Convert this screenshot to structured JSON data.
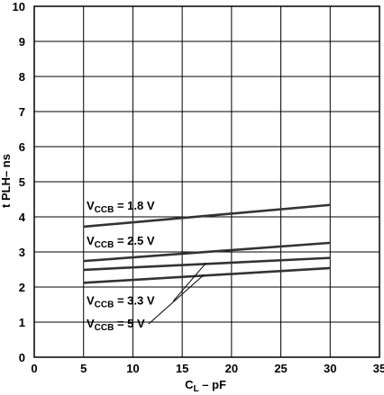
{
  "chart_data": {
    "type": "line",
    "title": "",
    "xlabel": {
      "main": "C",
      "sub": "L",
      "rest": " – pF"
    },
    "ylabel": "t PLH– ns",
    "xlim": [
      0,
      35
    ],
    "ylim": [
      0,
      10
    ],
    "x_ticks": [
      0,
      5,
      10,
      15,
      20,
      25,
      30,
      35
    ],
    "y_ticks": [
      0,
      1,
      2,
      3,
      4,
      5,
      6,
      7,
      8,
      9,
      10
    ],
    "grid": true,
    "series": [
      {
        "name": {
          "main": "V",
          "sub": "CCB",
          "rest": " = 1.8 V"
        },
        "x": [
          5,
          30
        ],
        "y": [
          3.72,
          4.34
        ]
      },
      {
        "name": {
          "main": "V",
          "sub": "CCB",
          "rest": " = 2.5 V"
        },
        "x": [
          5,
          30
        ],
        "y": [
          2.74,
          3.26
        ]
      },
      {
        "name": {
          "main": "V",
          "sub": "CCB",
          "rest": " = 3.3 V"
        },
        "x": [
          5,
          30
        ],
        "y": [
          2.49,
          2.83
        ]
      },
      {
        "name": {
          "main": "V",
          "sub": "CCB",
          "rest": " = 5 V"
        },
        "x": [
          5,
          30
        ],
        "y": [
          2.12,
          2.54
        ]
      }
    ]
  }
}
